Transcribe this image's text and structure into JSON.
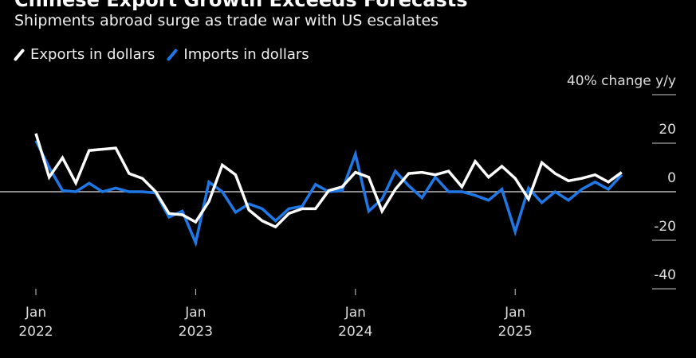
{
  "chart_data": {
    "type": "line",
    "title": "Chinese Export Growth Exceeds Forecasts",
    "subtitle": "Shipments abroad surge as trade war with US escalates",
    "ylabel": "% change y/y",
    "ylim": [
      -40,
      40
    ],
    "yticks": [
      40,
      20,
      0,
      -20,
      -40
    ],
    "ytick_labels": [
      "40% change y/y",
      "20",
      "0",
      "-20",
      "-40"
    ],
    "xticks": [
      {
        "month_index": 0,
        "label1": "Jan",
        "label2": "2022"
      },
      {
        "month_index": 12,
        "label1": "Jan",
        "label2": "2023"
      },
      {
        "month_index": 24,
        "label1": "Jan",
        "label2": "2024"
      },
      {
        "month_index": 36,
        "label1": "Jan",
        "label2": "2025"
      }
    ],
    "x_start": "Jan 2022",
    "legend_position": "top-left",
    "series": [
      {
        "name": "Exports in dollars",
        "color": "#ffffff",
        "values": [
          24,
          6,
          14,
          3.6,
          17,
          17.5,
          18,
          7.5,
          5.5,
          0,
          -9,
          -9.5,
          -12.5,
          -4,
          11,
          7,
          -7.5,
          -12,
          -14.5,
          -9,
          -7,
          -7,
          0.5,
          2,
          8,
          6,
          -8,
          1,
          7.5,
          8,
          7,
          8.5,
          2,
          12.5,
          6,
          10.5,
          5.5,
          -3,
          12,
          7.5,
          4.5,
          5.5,
          7,
          4,
          8
        ]
      },
      {
        "name": "Imports in dollars",
        "color": "#1f78e6",
        "values": [
          21,
          10,
          0.5,
          0,
          3.5,
          0,
          1.5,
          0,
          0,
          -0.5,
          -10.5,
          -8,
          -21,
          4,
          0,
          -8.5,
          -5,
          -7,
          -12,
          -7,
          -6,
          3,
          0,
          0.5,
          15.5,
          -8,
          -3,
          8.5,
          2.5,
          -2.5,
          6,
          0,
          0,
          -1.5,
          -3.5,
          1,
          -16.5,
          1.5,
          -4.5,
          0,
          -3.5,
          1,
          4,
          1,
          7
        ]
      }
    ]
  }
}
